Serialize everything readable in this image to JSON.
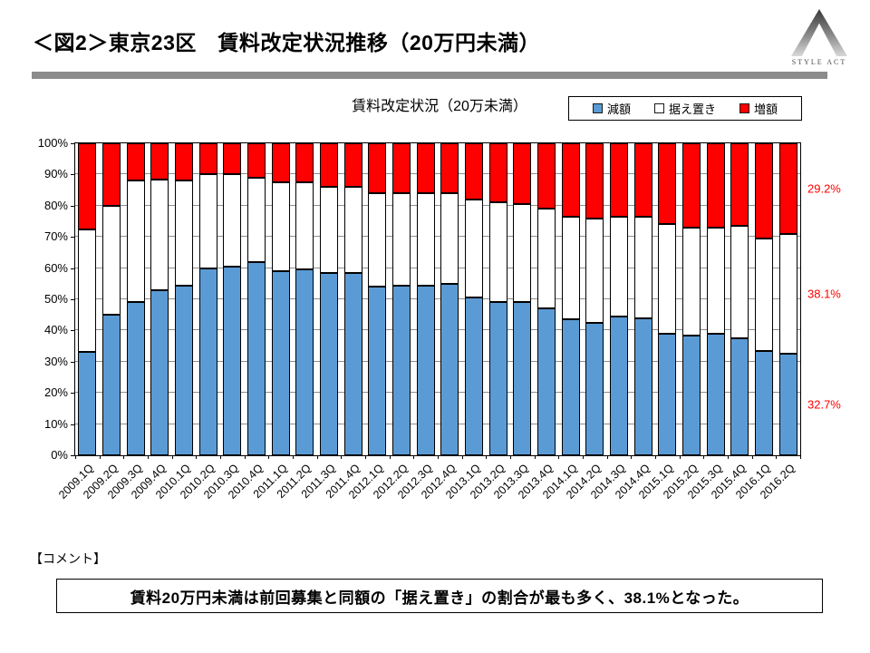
{
  "header": {
    "title": "＜図2＞東京23区　賃料改定状況推移（20万円未満）",
    "logo_text": "STYLE ACT"
  },
  "chart_data": {
    "type": "bar",
    "stacked": true,
    "title": "賃料改定状況（20万未満）",
    "ylabel": "",
    "xlabel": "",
    "ylim": [
      0,
      100
    ],
    "ytick_step": 10,
    "ytick_suffix": "%",
    "grid": true,
    "legend_position": "top-right",
    "categories": [
      "2009.1Q",
      "2009.2Q",
      "2009.3Q",
      "2009.4Q",
      "2010.1Q",
      "2010.2Q",
      "2010.3Q",
      "2010.4Q",
      "2011.1Q",
      "2011.2Q",
      "2011.3Q",
      "2011.4Q",
      "2012.1Q",
      "2012.2Q",
      "2012.3Q",
      "2012.4Q",
      "2013.1Q",
      "2013.2Q",
      "2013.3Q",
      "2013.4Q",
      "2014.1Q",
      "2014.2Q",
      "2014.3Q",
      "2014.4Q",
      "2015.1Q",
      "2015.2Q",
      "2015.3Q",
      "2015.4Q",
      "2016.1Q",
      "2016.2Q"
    ],
    "series": [
      {
        "key": "decrease",
        "name": "減額",
        "color": "#5B9BD5",
        "values": [
          33,
          45,
          49,
          53,
          54.5,
          60,
          60.5,
          62,
          59,
          59.5,
          58.5,
          58.5,
          54,
          54.5,
          54.5,
          55,
          50.5,
          49,
          49,
          47,
          43.5,
          42.5,
          44.5,
          44,
          39,
          38.5,
          39,
          37.5,
          33.5,
          32.7
        ]
      },
      {
        "key": "keep",
        "name": "据え置き",
        "color": "#FFFFFF",
        "values": [
          39.5,
          35,
          39,
          35.5,
          33.5,
          30,
          29.5,
          27,
          28.5,
          28,
          27.5,
          27.5,
          30,
          29.5,
          29.5,
          29,
          31.5,
          32,
          31.5,
          32,
          33,
          33.5,
          32,
          32.5,
          35,
          34.5,
          34,
          36,
          36,
          38.1
        ]
      },
      {
        "key": "increase",
        "name": "増額",
        "color": "#FF0000",
        "values": [
          27.5,
          20,
          12,
          11.5,
          12,
          10,
          10,
          11,
          12.5,
          12.5,
          14,
          14,
          16,
          16,
          16,
          16,
          18,
          19,
          19.5,
          21,
          23.5,
          24,
          23.5,
          23.5,
          26,
          27,
          27,
          26.5,
          30.5,
          29.2
        ]
      }
    ],
    "end_labels": [
      {
        "series_key": "increase",
        "text": "29.2%"
      },
      {
        "series_key": "keep",
        "text": "38.1%"
      },
      {
        "series_key": "decrease",
        "text": "32.7%"
      }
    ]
  },
  "comment": {
    "label": "【コメント】",
    "text": "賃料20万円未満は前回募集と同額の「据え置き」の割合が最も多く、38.1%となった。"
  }
}
